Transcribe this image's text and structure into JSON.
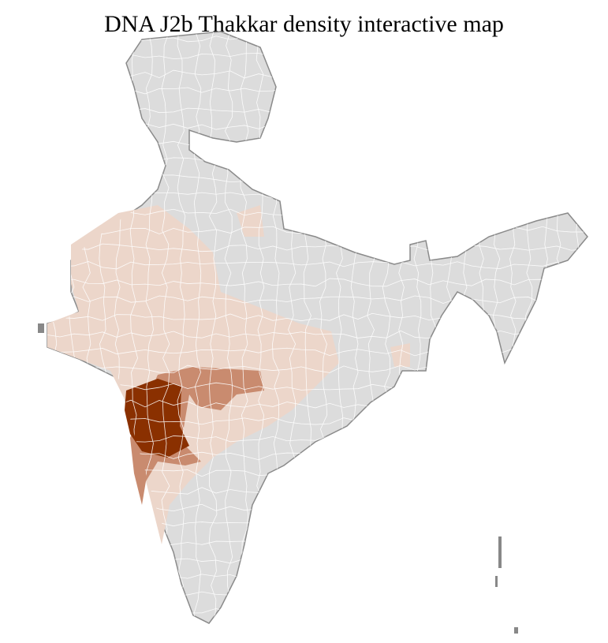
{
  "title": "DNA J2b Thakkar density interactive map",
  "colors": {
    "no_data": "#dcdcdc",
    "low": "#ecd6ca",
    "medium": "#c98b6f",
    "high": "#8a3000",
    "district_border": "#ffffff",
    "state_border": "#8a8a8a"
  }
}
